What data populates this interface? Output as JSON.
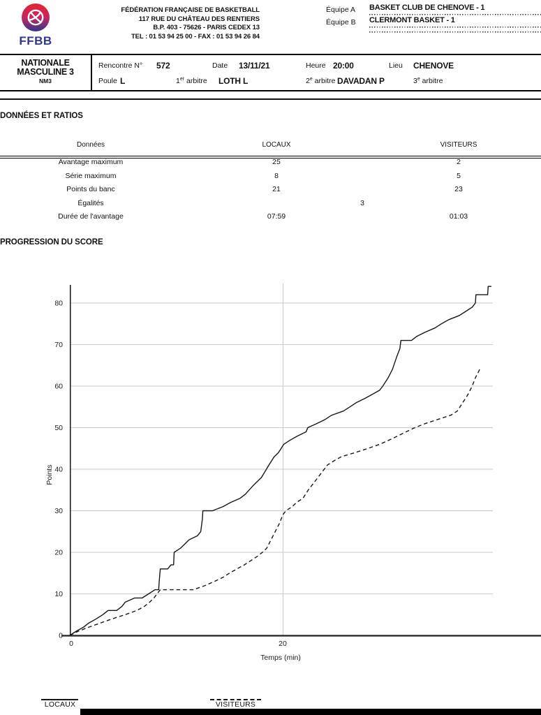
{
  "header": {
    "logo_text": "FFBB",
    "federation_lines": [
      "FÉDÉRATION FRANÇAISE DE BASKETBALL",
      "117 RUE DU CHÂTEAU DES RENTIERS",
      "B.P. 403 - 75626 - PARIS CEDEX 13",
      "TEL : 01 53 94 25 00 - FAX : 01 53 94 26 84"
    ],
    "equipe_a_label": "Équipe A",
    "equipe_a_value": "BASKET CLUB DE CHENOVE - 1",
    "equipe_b_label": "Équipe B",
    "equipe_b_value": "CLERMONT BASKET - 1"
  },
  "match_bar": {
    "division_line1": "NATIONALE",
    "division_line2": "MASCULINE 3",
    "division_code": "NM3",
    "rencontre_label": "Rencontre N°",
    "rencontre_value": "572",
    "date_label": "Date",
    "date_value": "13/11/21",
    "heure_label": "Heure",
    "heure_value": "20:00",
    "lieu_label": "Lieu",
    "lieu_value": "CHENOVE",
    "poule_label": "Poule",
    "poule_value": "L",
    "arbitre1_pre": "1",
    "arbitre1_sup": "er",
    "arbitre1_post": " arbitre",
    "arbitre1_value": "LOTH L",
    "arbitre2_pre": "2",
    "arbitre2_sup": "e",
    "arbitre2_post": " arbitre",
    "arbitre2_value": "DAVADAN P",
    "arbitre3_pre": "3",
    "arbitre3_sup": "e",
    "arbitre3_post": " arbitre",
    "arbitre3_value": ""
  },
  "donnees": {
    "section_title": "DONNÉES ET RATIOS",
    "col_label": "Données",
    "col_locaux": "LOCAUX",
    "col_visiteurs": "VISITEURS",
    "rows": [
      {
        "label": "Avantage maximum",
        "locaux": "25",
        "visiteurs": "2"
      },
      {
        "label": "Série maximum",
        "locaux": "8",
        "visiteurs": "5"
      },
      {
        "label": "Points du banc",
        "locaux": "21",
        "visiteurs": "23"
      },
      {
        "label": "Égalités",
        "center": "3"
      },
      {
        "label": "Durée de l'avantage",
        "locaux": "07:59",
        "visiteurs": "01:03"
      }
    ]
  },
  "progression_title": "PROGRESSION DU SCORE",
  "chart_data": {
    "type": "line",
    "title": "",
    "xlabel": "Temps (min)",
    "ylabel": "Points",
    "xlim": [
      0,
      40
    ],
    "ylim": [
      0,
      85
    ],
    "x_ticks": [
      0,
      20
    ],
    "y_ticks": [
      0,
      10,
      20,
      30,
      40,
      50,
      60,
      70,
      80
    ],
    "grid": true,
    "legend_position": "bottom",
    "series": [
      {
        "name": "LOCAUX",
        "style": "solid",
        "final_score": 84,
        "points": [
          [
            0,
            0
          ],
          [
            0.6,
            1
          ],
          [
            1.3,
            2
          ],
          [
            1.8,
            3
          ],
          [
            2.5,
            4
          ],
          [
            3.1,
            5
          ],
          [
            3.6,
            6
          ],
          [
            4.4,
            6
          ],
          [
            4.9,
            7
          ],
          [
            5.2,
            8
          ],
          [
            6.1,
            9
          ],
          [
            6.8,
            9
          ],
          [
            7.4,
            10
          ],
          [
            8,
            11
          ],
          [
            8.35,
            11
          ],
          [
            8.4,
            13
          ],
          [
            8.5,
            16
          ],
          [
            9.2,
            16
          ],
          [
            9.5,
            17
          ],
          [
            9.75,
            17
          ],
          [
            9.8,
            20
          ],
          [
            10.4,
            21
          ],
          [
            11.2,
            23
          ],
          [
            12,
            24
          ],
          [
            12.3,
            25
          ],
          [
            12.45,
            28
          ],
          [
            12.5,
            30
          ],
          [
            13.4,
            30
          ],
          [
            14.4,
            31
          ],
          [
            15.1,
            32
          ],
          [
            16,
            33
          ],
          [
            16.5,
            34
          ],
          [
            17.2,
            36
          ],
          [
            18,
            38
          ],
          [
            18.7,
            41
          ],
          [
            19.2,
            43
          ],
          [
            19.6,
            44
          ],
          [
            20.1,
            46
          ],
          [
            20.7,
            47
          ],
          [
            21.4,
            48
          ],
          [
            22.2,
            49
          ],
          [
            22.35,
            50
          ],
          [
            23.2,
            51
          ],
          [
            24,
            52
          ],
          [
            24.6,
            53
          ],
          [
            25.7,
            54
          ],
          [
            26.3,
            55
          ],
          [
            26.9,
            56
          ],
          [
            27.7,
            57
          ],
          [
            28.4,
            58
          ],
          [
            29.1,
            59
          ],
          [
            29.4,
            60
          ],
          [
            29.9,
            62
          ],
          [
            30.3,
            64
          ],
          [
            30.7,
            67
          ],
          [
            31,
            69
          ],
          [
            31.1,
            71
          ],
          [
            32.1,
            71
          ],
          [
            32.6,
            72
          ],
          [
            33.4,
            73
          ],
          [
            34.3,
            74
          ],
          [
            34.9,
            75
          ],
          [
            35.6,
            76
          ],
          [
            36.6,
            77
          ],
          [
            37.2,
            78
          ],
          [
            37.8,
            79
          ],
          [
            38.1,
            80
          ],
          [
            38.15,
            82
          ],
          [
            39.25,
            82
          ],
          [
            39.3,
            84
          ],
          [
            39.6,
            84
          ]
        ]
      },
      {
        "name": "VISITEURS",
        "style": "dashed",
        "final_score": 64,
        "points": [
          [
            0,
            0
          ],
          [
            0.8,
            1
          ],
          [
            1.8,
            2
          ],
          [
            2.9,
            3
          ],
          [
            4,
            4
          ],
          [
            5.2,
            5
          ],
          [
            6.3,
            6
          ],
          [
            7,
            7
          ],
          [
            7.5,
            8
          ],
          [
            7.9,
            9
          ],
          [
            8.2,
            10
          ],
          [
            8.5,
            11
          ],
          [
            11.6,
            11
          ],
          [
            12.7,
            12
          ],
          [
            13.6,
            13
          ],
          [
            14.4,
            14
          ],
          [
            15,
            15
          ],
          [
            15.7,
            16
          ],
          [
            16.4,
            17
          ],
          [
            17,
            18
          ],
          [
            17.6,
            19
          ],
          [
            18.1,
            20
          ],
          [
            18.5,
            21
          ],
          [
            18.9,
            23
          ],
          [
            19.3,
            25
          ],
          [
            19.7,
            27
          ],
          [
            20,
            29
          ],
          [
            20.3,
            30
          ],
          [
            20.9,
            31
          ],
          [
            21.3,
            32
          ],
          [
            21.9,
            33
          ],
          [
            22.4,
            35
          ],
          [
            23,
            37
          ],
          [
            23.6,
            39
          ],
          [
            24.2,
            41
          ],
          [
            24.8,
            42
          ],
          [
            25.5,
            43
          ],
          [
            26.8,
            44
          ],
          [
            28,
            45
          ],
          [
            29.1,
            46
          ],
          [
            30,
            47
          ],
          [
            30.8,
            48
          ],
          [
            31.6,
            49
          ],
          [
            32.4,
            50
          ],
          [
            33.4,
            51
          ],
          [
            34.6,
            52
          ],
          [
            35.8,
            53
          ],
          [
            36.4,
            54
          ],
          [
            36.9,
            56
          ],
          [
            37.4,
            58
          ],
          [
            37.8,
            60
          ],
          [
            38.1,
            62
          ],
          [
            38.3,
            63
          ],
          [
            38.5,
            64
          ]
        ]
      }
    ]
  }
}
